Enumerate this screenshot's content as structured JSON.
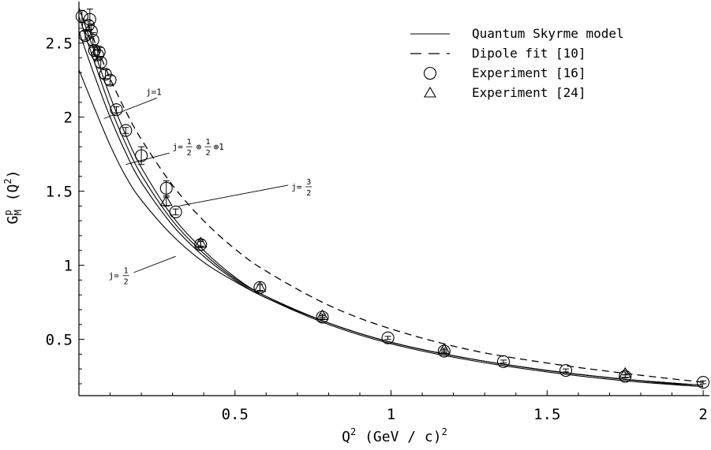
{
  "chart_data": {
    "type": "line",
    "xlabel": {
      "base": "Q",
      "sup": "2",
      "rest": " (GeV / c)",
      "rest_sup": "2"
    },
    "ylabel": {
      "base": "G",
      "sup": "p",
      "sub": "M",
      "rest": " (Q",
      "rest_sup": "2",
      "tail": ")"
    },
    "xlim": [
      0,
      2.02
    ],
    "ylim": [
      0.12,
      2.78
    ],
    "x_ticks": [
      {
        "value": 0.5,
        "label": "0.5"
      },
      {
        "value": 1,
        "label": "1"
      },
      {
        "value": 1.5,
        "label": "1.5"
      },
      {
        "value": 2,
        "label": "2"
      }
    ],
    "y_ticks": [
      {
        "value": 0.5,
        "label": "0.5"
      },
      {
        "value": 1,
        "label": "1"
      },
      {
        "value": 1.5,
        "label": "1.5"
      },
      {
        "value": 2,
        "label": "2"
      },
      {
        "value": 2.5,
        "label": "2.5"
      }
    ],
    "legend": {
      "placement": "top-right",
      "entries": [
        {
          "marker": "solid",
          "label": "Quantum Skyrme model"
        },
        {
          "marker": "dashed",
          "label": "Dipole fit [10]"
        },
        {
          "marker": "circle",
          "label": "Experiment [16]"
        },
        {
          "marker": "triangle",
          "label": "Experiment [24]"
        }
      ]
    },
    "model_curves": [
      {
        "annotation": "j=1/2",
        "x": [
          0.0,
          0.05,
          0.1,
          0.15,
          0.2,
          0.3,
          0.4,
          0.5,
          0.6,
          0.8,
          1.0,
          1.25,
          1.5,
          1.75,
          2.0
        ],
        "y": [
          2.32,
          2.06,
          1.81,
          1.6,
          1.44,
          1.2,
          1.02,
          0.89,
          0.78,
          0.61,
          0.48,
          0.37,
          0.29,
          0.23,
          0.18
        ]
      },
      {
        "annotation": "j=1/2⊕1/2⊕1",
        "x": [
          0.0,
          0.05,
          0.1,
          0.15,
          0.2,
          0.3,
          0.4,
          0.5,
          0.6,
          0.8,
          1.0,
          1.25,
          1.5,
          1.75,
          2.0
        ],
        "y": [
          2.58,
          2.28,
          2.0,
          1.76,
          1.56,
          1.27,
          1.06,
          0.9,
          0.78,
          0.6,
          0.47,
          0.36,
          0.28,
          0.22,
          0.18
        ]
      },
      {
        "annotation": "j=3/2",
        "x": [
          0.0,
          0.05,
          0.1,
          0.15,
          0.2,
          0.3,
          0.4,
          0.5,
          0.6,
          0.8,
          1.0,
          1.25,
          1.5,
          1.75,
          2.0
        ],
        "y": [
          2.68,
          2.37,
          2.07,
          1.82,
          1.61,
          1.3,
          1.08,
          0.91,
          0.79,
          0.61,
          0.48,
          0.37,
          0.29,
          0.23,
          0.19
        ]
      },
      {
        "annotation": "j=1",
        "x": [
          0.0,
          0.05,
          0.1,
          0.15,
          0.2,
          0.3,
          0.4,
          0.5,
          0.6,
          0.8,
          1.0,
          1.25,
          1.5,
          1.75,
          2.0
        ],
        "y": [
          2.74,
          2.44,
          2.14,
          1.88,
          1.66,
          1.33,
          1.1,
          0.92,
          0.79,
          0.61,
          0.48,
          0.37,
          0.29,
          0.23,
          0.19
        ]
      }
    ],
    "dipole_fit": {
      "x": [
        0.03,
        0.06,
        0.1,
        0.15,
        0.2,
        0.3,
        0.4,
        0.5,
        0.6,
        0.8,
        1.0,
        1.25,
        1.5,
        1.75,
        2.0
      ],
      "y": [
        2.62,
        2.46,
        2.26,
        2.04,
        1.85,
        1.54,
        1.3,
        1.11,
        0.96,
        0.73,
        0.57,
        0.43,
        0.34,
        0.27,
        0.21
      ]
    },
    "experiment_16": [
      {
        "x": 0.01,
        "y": 2.68,
        "err": 0.04
      },
      {
        "x": 0.02,
        "y": 2.55,
        "err": 0.03
      },
      {
        "x": 0.03,
        "y": 2.62,
        "err": 0.03
      },
      {
        "x": 0.035,
        "y": 2.66,
        "err": 0.07
      },
      {
        "x": 0.04,
        "y": 2.58,
        "err": 0.05
      },
      {
        "x": 0.045,
        "y": 2.52,
        "err": 0.05
      },
      {
        "x": 0.05,
        "y": 2.45,
        "err": 0.03
      },
      {
        "x": 0.06,
        "y": 2.42,
        "err": 0.03
      },
      {
        "x": 0.065,
        "y": 2.44,
        "err": 0.03
      },
      {
        "x": 0.07,
        "y": 2.37,
        "err": 0.04
      },
      {
        "x": 0.085,
        "y": 2.29,
        "err": 0.03
      },
      {
        "x": 0.1,
        "y": 2.25,
        "err": 0.03
      },
      {
        "x": 0.12,
        "y": 2.05,
        "err": 0.02
      },
      {
        "x": 0.15,
        "y": 1.91,
        "err": 0.02
      },
      {
        "x": 0.2,
        "y": 1.74,
        "err": 0.06
      },
      {
        "x": 0.28,
        "y": 1.52,
        "err": 0.05
      },
      {
        "x": 0.31,
        "y": 1.36,
        "err": 0.02
      },
      {
        "x": 0.39,
        "y": 1.14,
        "err": 0.02
      },
      {
        "x": 0.58,
        "y": 0.85,
        "err": 0.02
      },
      {
        "x": 0.78,
        "y": 0.65,
        "err": 0.01
      },
      {
        "x": 0.99,
        "y": 0.51,
        "err": 0.01
      },
      {
        "x": 1.17,
        "y": 0.42,
        "err": 0.01
      },
      {
        "x": 1.36,
        "y": 0.35,
        "err": 0.01
      },
      {
        "x": 1.56,
        "y": 0.29,
        "err": 0.01
      },
      {
        "x": 1.75,
        "y": 0.25,
        "err": 0.01
      },
      {
        "x": 2.0,
        "y": 0.21,
        "err": 0.01
      }
    ],
    "experiment_24": [
      {
        "x": 0.28,
        "y": 1.43,
        "err": 0.03
      },
      {
        "x": 0.39,
        "y": 1.15,
        "err": 0.02
      },
      {
        "x": 0.58,
        "y": 0.85,
        "err": 0.02
      },
      {
        "x": 0.78,
        "y": 0.66,
        "err": 0.01
      },
      {
        "x": 1.17,
        "y": 0.43,
        "err": 0.01
      },
      {
        "x": 1.75,
        "y": 0.27,
        "err": 0.01
      }
    ],
    "annotations": [
      {
        "text": "j=1",
        "type": "plain",
        "label_at": [
          0.22,
          2.14
        ],
        "line_to": [
          0.08,
          1.99
        ]
      },
      {
        "text": "j=",
        "type": "frac3",
        "label_at": [
          0.31,
          1.8
        ],
        "line_to": [
          0.15,
          1.68
        ]
      },
      {
        "text": "j=",
        "type": "frac32",
        "label_at": [
          0.62,
          1.53
        ],
        "line_to": [
          0.32,
          1.4
        ]
      },
      {
        "text": "j=",
        "type": "frac12",
        "label_at": [
          0.09,
          0.93
        ],
        "line_to": [
          0.31,
          1.06
        ]
      }
    ],
    "grid": false
  }
}
